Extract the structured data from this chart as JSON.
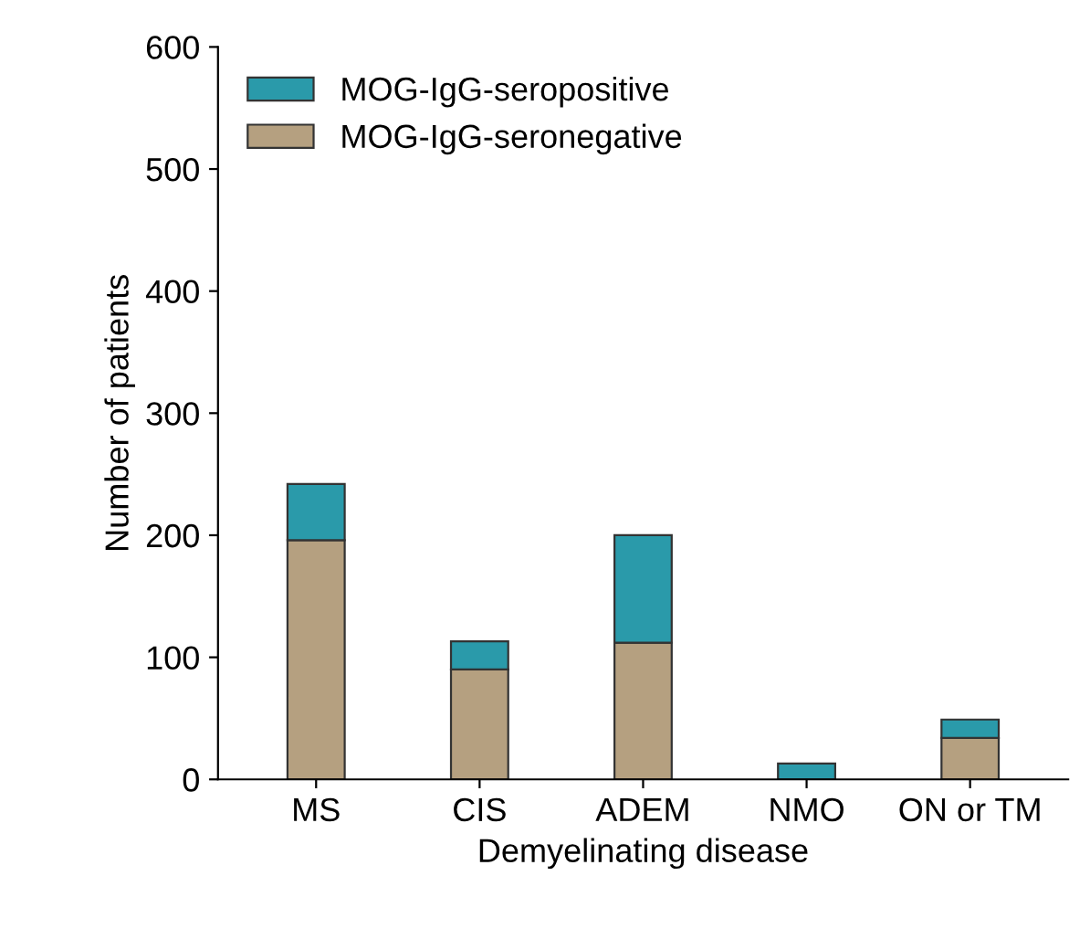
{
  "chart_data": {
    "type": "bar",
    "stacked": true,
    "xlabel": "Demyelinating disease",
    "ylabel": "Number of patients",
    "categories": [
      "MS",
      "CIS",
      "ADEM",
      "NMO",
      "ON or TM"
    ],
    "series": [
      {
        "name": "MOG-IgG-seronegative",
        "color": "#b5a080",
        "values": [
          196,
          90,
          112,
          null,
          34
        ]
      },
      {
        "name": "MOG-IgG-seropositive",
        "color": "#2a9aaa",
        "values": [
          46,
          23,
          88,
          13,
          15
        ]
      }
    ],
    "ylim": [
      0,
      600
    ],
    "yticks": [
      0,
      100,
      200,
      300,
      400,
      500,
      600
    ],
    "grid": false,
    "legend": "top left"
  }
}
